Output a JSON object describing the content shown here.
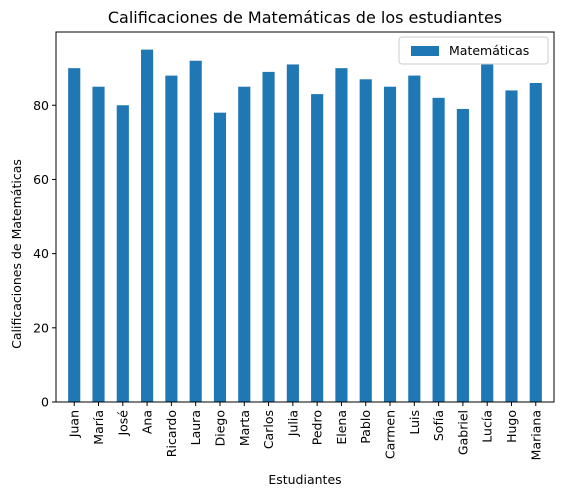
{
  "chart_data": {
    "type": "bar",
    "title": "Calificaciones de Matemáticas de los estudiantes",
    "xlabel": "Estudiantes",
    "ylabel": "Calificaciones de Matemáticas",
    "categories": [
      "Juan",
      "María",
      "José",
      "Ana",
      "Ricardo",
      "Laura",
      "Diego",
      "Marta",
      "Carlos",
      "Julia",
      "Pedro",
      "Elena",
      "Pablo",
      "Carmen",
      "Luis",
      "Sofía",
      "Gabriel",
      "Lucía",
      "Hugo",
      "Mariana"
    ],
    "series": [
      {
        "name": "Matemáticas",
        "color": "#1f77b4",
        "values": [
          90,
          85,
          80,
          95,
          88,
          92,
          78,
          85,
          89,
          91,
          83,
          90,
          87,
          85,
          88,
          82,
          79,
          91,
          84,
          86
        ]
      }
    ],
    "ylim": [
      0,
      99.75
    ],
    "yticks": [
      0,
      20,
      40,
      60,
      80
    ],
    "grid": false,
    "legend_position": "top-right"
  }
}
